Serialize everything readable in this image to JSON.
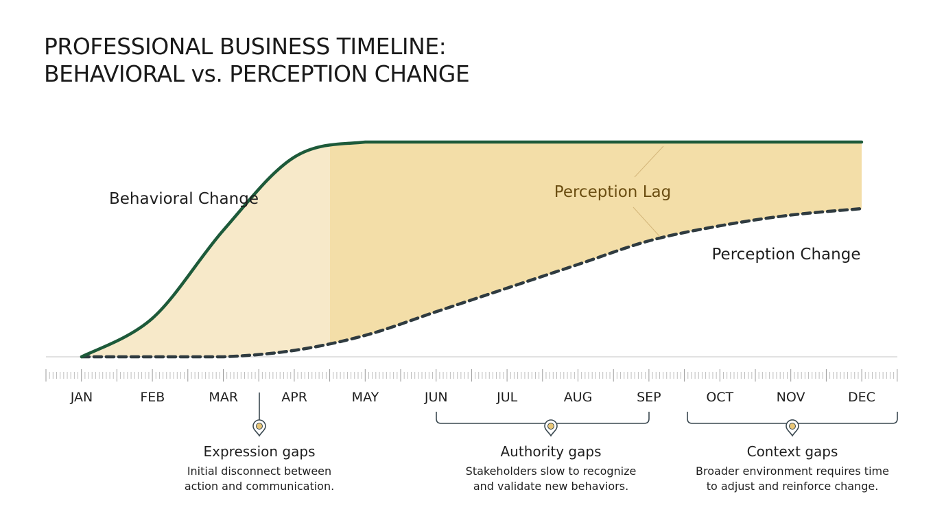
{
  "chart_data": {
    "type": "line",
    "title": "PROFESSIONAL BUSINESS TIMELINE:\nBEHAVIORAL vs. PERCEPTION CHANGE",
    "title_lines": [
      "PROFESSIONAL BUSINESS TIMELINE:",
      "BEHAVIORAL vs. PERCEPTION CHANGE"
    ],
    "categories": [
      "JAN",
      "FEB",
      "MAR",
      "APR",
      "MAY",
      "JUN",
      "JUL",
      "AUG",
      "SEP",
      "OCT",
      "NOV",
      "DEC"
    ],
    "ylim": [
      0,
      1
    ],
    "grid": false,
    "series": [
      {
        "name": "Behavioral Change",
        "style": "solid",
        "color": "#1d5a3a",
        "values": [
          0,
          0.18,
          0.59,
          0.93,
          1,
          1,
          1,
          1,
          1,
          1,
          1,
          1
        ]
      },
      {
        "name": "Perception Change",
        "style": "dashed",
        "color": "#2f3b40",
        "values": [
          0,
          0,
          0,
          0.03,
          0.1,
          0.21,
          0.32,
          0.43,
          0.54,
          0.61,
          0.66,
          0.69
        ]
      }
    ],
    "area_label": "Perception Lag",
    "area_color": "#f3dea8",
    "area_color_light": "#f7e9c9",
    "area_label_color": "#6b4e12",
    "annotations": [
      {
        "title": "Expression gaps",
        "lines": [
          "Initial disconnect between",
          "action and communication."
        ],
        "marker": "pin-icon",
        "span": [
          "MAR",
          "APR"
        ]
      },
      {
        "title": "Authority gaps",
        "lines": [
          "Stakeholders slow to recognize",
          "and validate new behaviors."
        ],
        "marker": "pin-icon",
        "span": [
          "JUN",
          "SEP"
        ]
      },
      {
        "title": "Context gaps",
        "lines": [
          "Broader environment requires time",
          "to adjust and reinforce change."
        ],
        "marker": "pin-icon",
        "span": [
          "OCT",
          "DEC"
        ]
      }
    ]
  }
}
